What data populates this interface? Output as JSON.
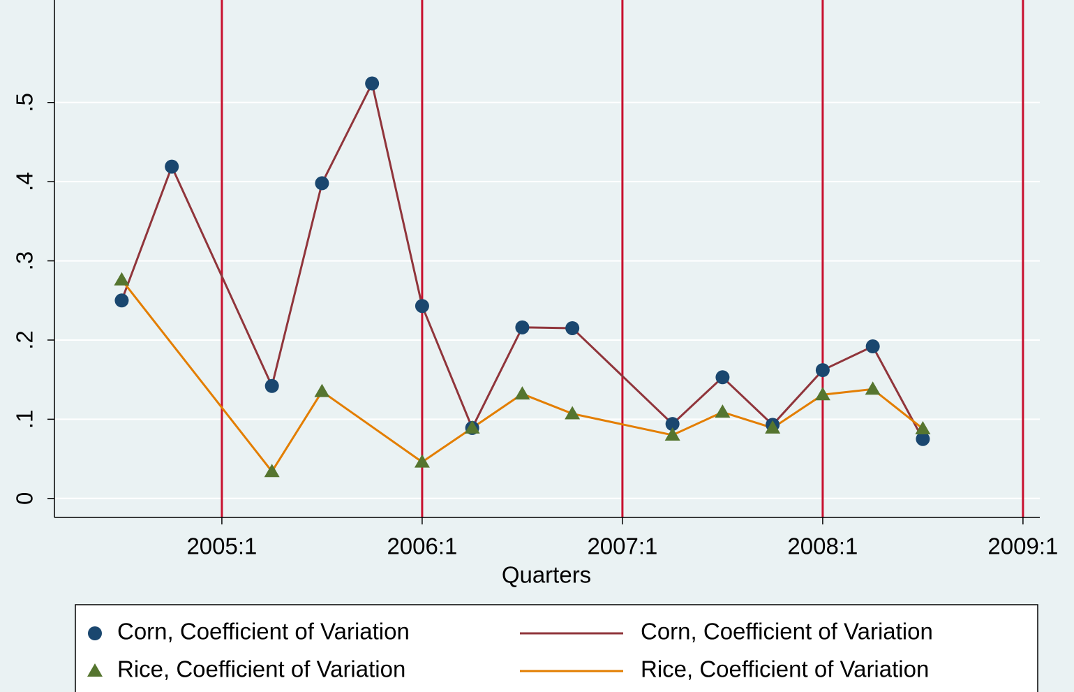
{
  "chart_data": {
    "type": "line",
    "xlabel": "Quarters",
    "xlim": [
      2004.164,
      2009.084
    ],
    "xticks": [
      {
        "value": 2005,
        "label": "2005:1"
      },
      {
        "value": 2006,
        "label": "2006:1"
      },
      {
        "value": 2007,
        "label": "2007:1"
      },
      {
        "value": 2008,
        "label": "2008:1"
      },
      {
        "value": 2009,
        "label": "2009:1"
      }
    ],
    "xlines": [
      2005,
      2006,
      2007,
      2008,
      2009
    ],
    "xline_color": "#c8102e",
    "ylim": [
      -0.024,
      0.625
    ],
    "yticks": [
      0,
      {
        "value": 0.1,
        "label": ".1"
      },
      {
        "value": 0.2,
        "label": ".2"
      },
      {
        "value": 0.3,
        "label": ".3"
      },
      {
        "value": 0.4,
        "label": ".4"
      },
      {
        "value": 0.5,
        "label": ".5"
      }
    ],
    "grid": true,
    "legend": "bottom",
    "series": [
      {
        "name": "Corn, Coefficient of Variation",
        "kind": "scatter",
        "marker": "circle",
        "color": "#1a476f",
        "x": [
          2004.5,
          2004.75,
          2005.25,
          2005.5,
          2005.75,
          2006,
          2006.25,
          2006.5,
          2006.75,
          2007.25,
          2007.5,
          2007.75,
          2008,
          2008.25,
          2008.5
        ],
        "values": [
          0.25,
          0.419,
          0.142,
          0.398,
          0.524,
          0.243,
          0.089,
          0.216,
          0.215,
          0.094,
          0.153,
          0.093,
          0.162,
          0.192,
          0.075
        ]
      },
      {
        "name": "Rice, Coefficient of Variation",
        "kind": "scatter",
        "marker": "triangle",
        "color": "#55752f",
        "x": [
          2004.5,
          2005.25,
          2005.5,
          2006,
          2006.25,
          2006.5,
          2006.75,
          2007.25,
          2007.5,
          2007.75,
          2008,
          2008.25,
          2008.5
        ],
        "values": [
          0.276,
          0.034,
          0.135,
          0.046,
          0.089,
          0.132,
          0.107,
          0.08,
          0.109,
          0.089,
          0.131,
          0.138,
          0.088
        ]
      },
      {
        "name": "Corn, Coefficient of Variation",
        "kind": "line",
        "color": "#90353b",
        "x": [
          2004.5,
          2004.75,
          2005.25,
          2005.5,
          2005.75,
          2006,
          2006.25,
          2006.5,
          2006.75,
          2007.25,
          2007.5,
          2007.75,
          2008,
          2008.25,
          2008.5
        ],
        "values": [
          0.25,
          0.419,
          0.142,
          0.398,
          0.524,
          0.243,
          0.089,
          0.216,
          0.215,
          0.094,
          0.153,
          0.093,
          0.162,
          0.192,
          0.075
        ]
      },
      {
        "name": "Rice, Coefficient of Variation",
        "kind": "line",
        "color": "#e37e00",
        "x": [
          2004.5,
          2005.25,
          2005.5,
          2006,
          2006.25,
          2006.5,
          2006.75,
          2007.25,
          2007.5,
          2007.75,
          2008,
          2008.25,
          2008.5
        ],
        "values": [
          0.276,
          0.034,
          0.135,
          0.046,
          0.089,
          0.132,
          0.107,
          0.08,
          0.109,
          0.089,
          0.131,
          0.138,
          0.088
        ]
      }
    ]
  }
}
